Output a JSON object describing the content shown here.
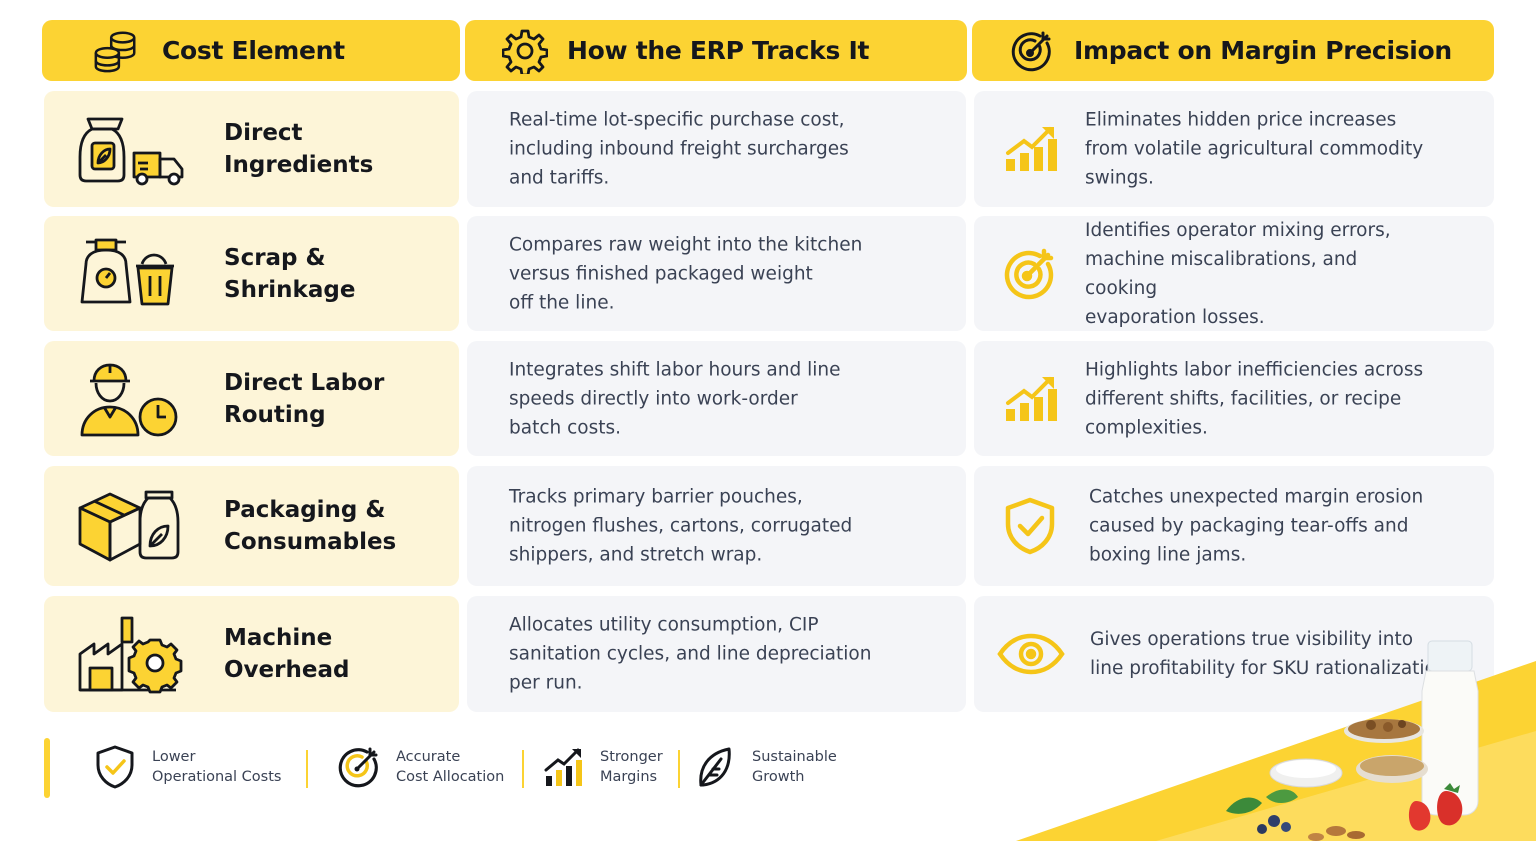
{
  "headers": [
    {
      "label": "Cost Element",
      "icon": "coins-icon"
    },
    {
      "label": "How the ERP Tracks It",
      "icon": "gear-icon"
    },
    {
      "label": "Impact on Margin Precision",
      "icon": "target-icon"
    }
  ],
  "rows": [
    {
      "element_lines": [
        "Direct",
        "Ingredients"
      ],
      "element_icon": "ingredients-truck-icon",
      "tracks_lines": [
        "Real-time lot-specific purchase cost,",
        "including inbound freight surcharges",
        "and tariffs."
      ],
      "impact_icon": "growth-chart-icon",
      "impact_lines": [
        "Eliminates hidden price increases",
        "from volatile agricultural commodity",
        "swings."
      ]
    },
    {
      "element_lines": [
        "Scrap &",
        "Shrinkage"
      ],
      "element_icon": "scale-bin-icon",
      "tracks_lines": [
        "Compares raw weight into the kitchen",
        "versus finished packaged weight",
        "off the line."
      ],
      "impact_icon": "target-icon",
      "impact_lines": [
        "Identifies operator mixing errors,",
        "machine miscalibrations, and cooking",
        "evaporation losses."
      ]
    },
    {
      "element_lines": [
        "Direct Labor",
        "Routing"
      ],
      "element_icon": "worker-clock-icon",
      "tracks_lines": [
        "Integrates shift labor hours and line",
        "speeds directly into work-order",
        "batch costs."
      ],
      "impact_icon": "growth-chart-icon",
      "impact_lines": [
        "Highlights labor inefficiencies across",
        "different shifts, facilities, or recipe",
        "complexities."
      ]
    },
    {
      "element_lines": [
        "Packaging &",
        "Consumables"
      ],
      "element_icon": "box-pouch-icon",
      "tracks_lines": [
        "Tracks primary barrier pouches,",
        "nitrogen flushes, cartons, corrugated",
        "shippers, and stretch wrap."
      ],
      "impact_icon": "shield-check-icon",
      "impact_lines": [
        "Catches unexpected margin erosion",
        "caused by packaging tear-offs and",
        "boxing line jams."
      ]
    },
    {
      "element_lines": [
        "Machine",
        "Overhead"
      ],
      "element_icon": "factory-gear-icon",
      "tracks_lines": [
        "Allocates utility consumption, CIP",
        "sanitation cycles, and line depreciation",
        "per run."
      ],
      "impact_icon": "eye-icon",
      "impact_lines": [
        "Gives operations true visibility into",
        "line profitability for SKU rationalization."
      ]
    }
  ],
  "footer": [
    {
      "lines": [
        "Lower",
        "Operational Costs"
      ],
      "icon": "shield-check-icon"
    },
    {
      "lines": [
        "Accurate",
        "Cost Allocation"
      ],
      "icon": "target-icon"
    },
    {
      "lines": [
        "Stronger",
        "Margins"
      ],
      "icon": "growth-chart-icon"
    },
    {
      "lines": [
        "Sustainable",
        "Growth"
      ],
      "icon": "leaf-icon"
    }
  ],
  "colors": {
    "accent": "#fcd333",
    "icon_dark": "#15171c",
    "icon_yellow": "#f5c518",
    "row_left_bg": "#fdf5d8",
    "row_bg": "#f4f5f8"
  }
}
